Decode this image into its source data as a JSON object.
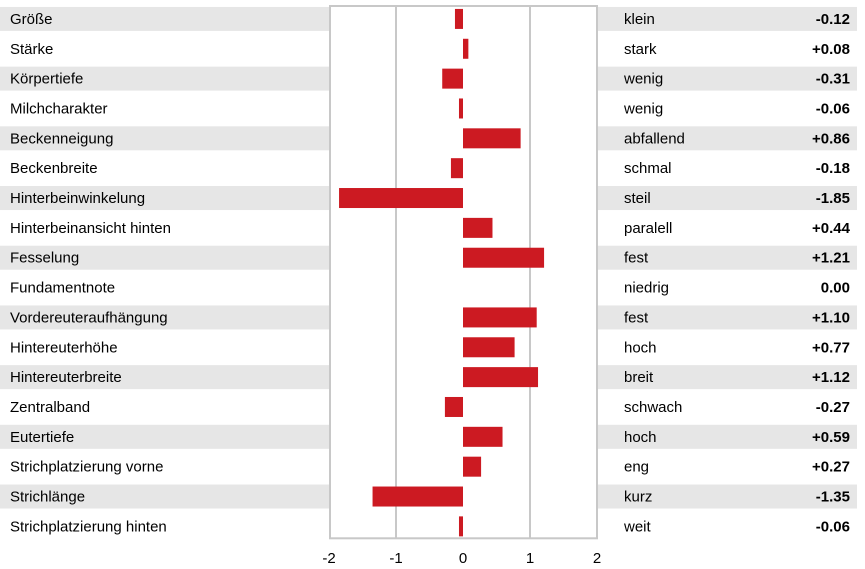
{
  "chart_data": {
    "type": "bar",
    "orientation": "horizontal",
    "xlim": [
      -2,
      2
    ],
    "x_ticks": [
      "-2",
      "-1",
      "0",
      "1",
      "2"
    ],
    "grid": true,
    "colors": {
      "bar": "#cc1a22",
      "band": "#e6e6e6",
      "grid": "#c8c8c8",
      "text": "#000000"
    },
    "rows": [
      {
        "trait": "Größe",
        "direction": "klein",
        "value": -0.12,
        "value_label": "-0.12"
      },
      {
        "trait": "Stärke",
        "direction": "stark",
        "value": 0.08,
        "value_label": "+0.08"
      },
      {
        "trait": "Körpertiefe",
        "direction": "wenig",
        "value": -0.31,
        "value_label": "-0.31"
      },
      {
        "trait": "Milchcharakter",
        "direction": "wenig",
        "value": -0.06,
        "value_label": "-0.06"
      },
      {
        "trait": "Beckenneigung",
        "direction": "abfallend",
        "value": 0.86,
        "value_label": "+0.86"
      },
      {
        "trait": "Beckenbreite",
        "direction": "schmal",
        "value": -0.18,
        "value_label": "-0.18"
      },
      {
        "trait": "Hinterbeinwinkelung",
        "direction": "steil",
        "value": -1.85,
        "value_label": "-1.85"
      },
      {
        "trait": "Hinterbeinansicht hinten",
        "direction": "paralell",
        "value": 0.44,
        "value_label": "+0.44"
      },
      {
        "trait": "Fesselung",
        "direction": "fest",
        "value": 1.21,
        "value_label": "+1.21"
      },
      {
        "trait": "Fundamentnote",
        "direction": "niedrig",
        "value": 0.0,
        "value_label": "0.00"
      },
      {
        "trait": "Vordereuteraufhängung",
        "direction": "fest",
        "value": 1.1,
        "value_label": "+1.10"
      },
      {
        "trait": "Hintereuterhöhe",
        "direction": "hoch",
        "value": 0.77,
        "value_label": "+0.77"
      },
      {
        "trait": "Hintereuterbreite",
        "direction": "breit",
        "value": 1.12,
        "value_label": "+1.12"
      },
      {
        "trait": "Zentralband",
        "direction": "schwach",
        "value": -0.27,
        "value_label": "-0.27"
      },
      {
        "trait": "Eutertiefe",
        "direction": "hoch",
        "value": 0.59,
        "value_label": "+0.59"
      },
      {
        "trait": "Strichplatzierung vorne",
        "direction": "eng",
        "value": 0.27,
        "value_label": "+0.27"
      },
      {
        "trait": "Strichlänge",
        "direction": "kurz",
        "value": -1.35,
        "value_label": "-1.35"
      },
      {
        "trait": "Strichplatzierung hinten",
        "direction": "weit",
        "value": -0.06,
        "value_label": "-0.06"
      }
    ]
  }
}
